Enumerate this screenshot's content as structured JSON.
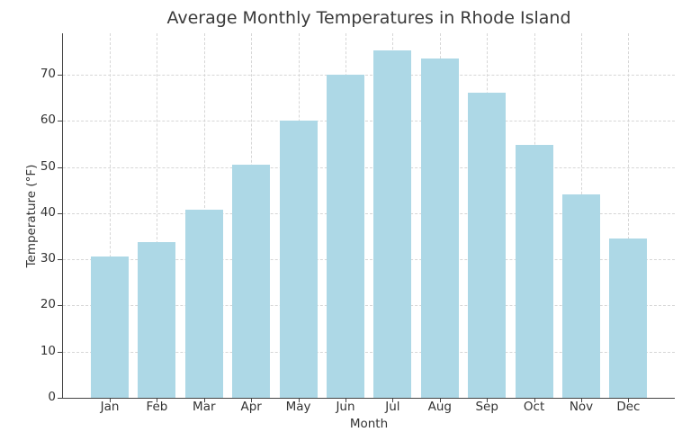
{
  "chart_data": {
    "type": "bar",
    "title": "Average Monthly Temperatures in Rhode Island",
    "xlabel": "Month",
    "ylabel": "Temperature (°F)",
    "categories": [
      "Jan",
      "Feb",
      "Mar",
      "Apr",
      "May",
      "Jun",
      "Jul",
      "Aug",
      "Sep",
      "Oct",
      "Nov",
      "Dec"
    ],
    "values": [
      30.6,
      33.7,
      40.8,
      50.5,
      60.0,
      70.0,
      75.2,
      73.5,
      66.2,
      54.9,
      44.0,
      34.6
    ],
    "ylim": [
      0,
      79
    ],
    "yticks": [
      0,
      10,
      20,
      30,
      40,
      50,
      60,
      70
    ],
    "grid": true,
    "legend": null,
    "bar_color": "#add8e6"
  },
  "labels": {
    "title": "Average Monthly Temperatures in Rhode Island",
    "xlabel": "Month",
    "ylabel": "Temperature (°F)"
  }
}
